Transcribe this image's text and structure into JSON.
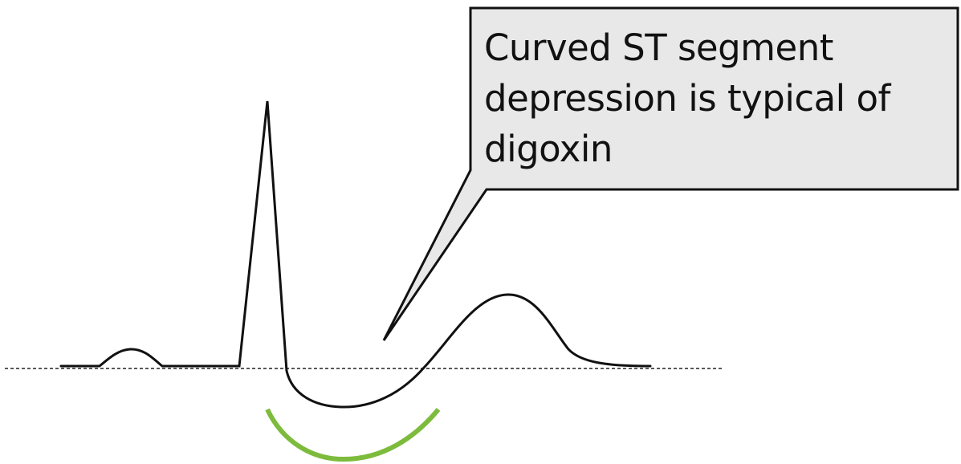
{
  "callout": {
    "lines": [
      "Curved ST segment",
      "depression is typical of",
      "digoxin"
    ]
  },
  "colors": {
    "trace": "#111111",
    "baseline": "#222222",
    "callout_fill": "#e8e8e8",
    "callout_border": "#111111",
    "highlight_arc": "#7dbb3c"
  }
}
